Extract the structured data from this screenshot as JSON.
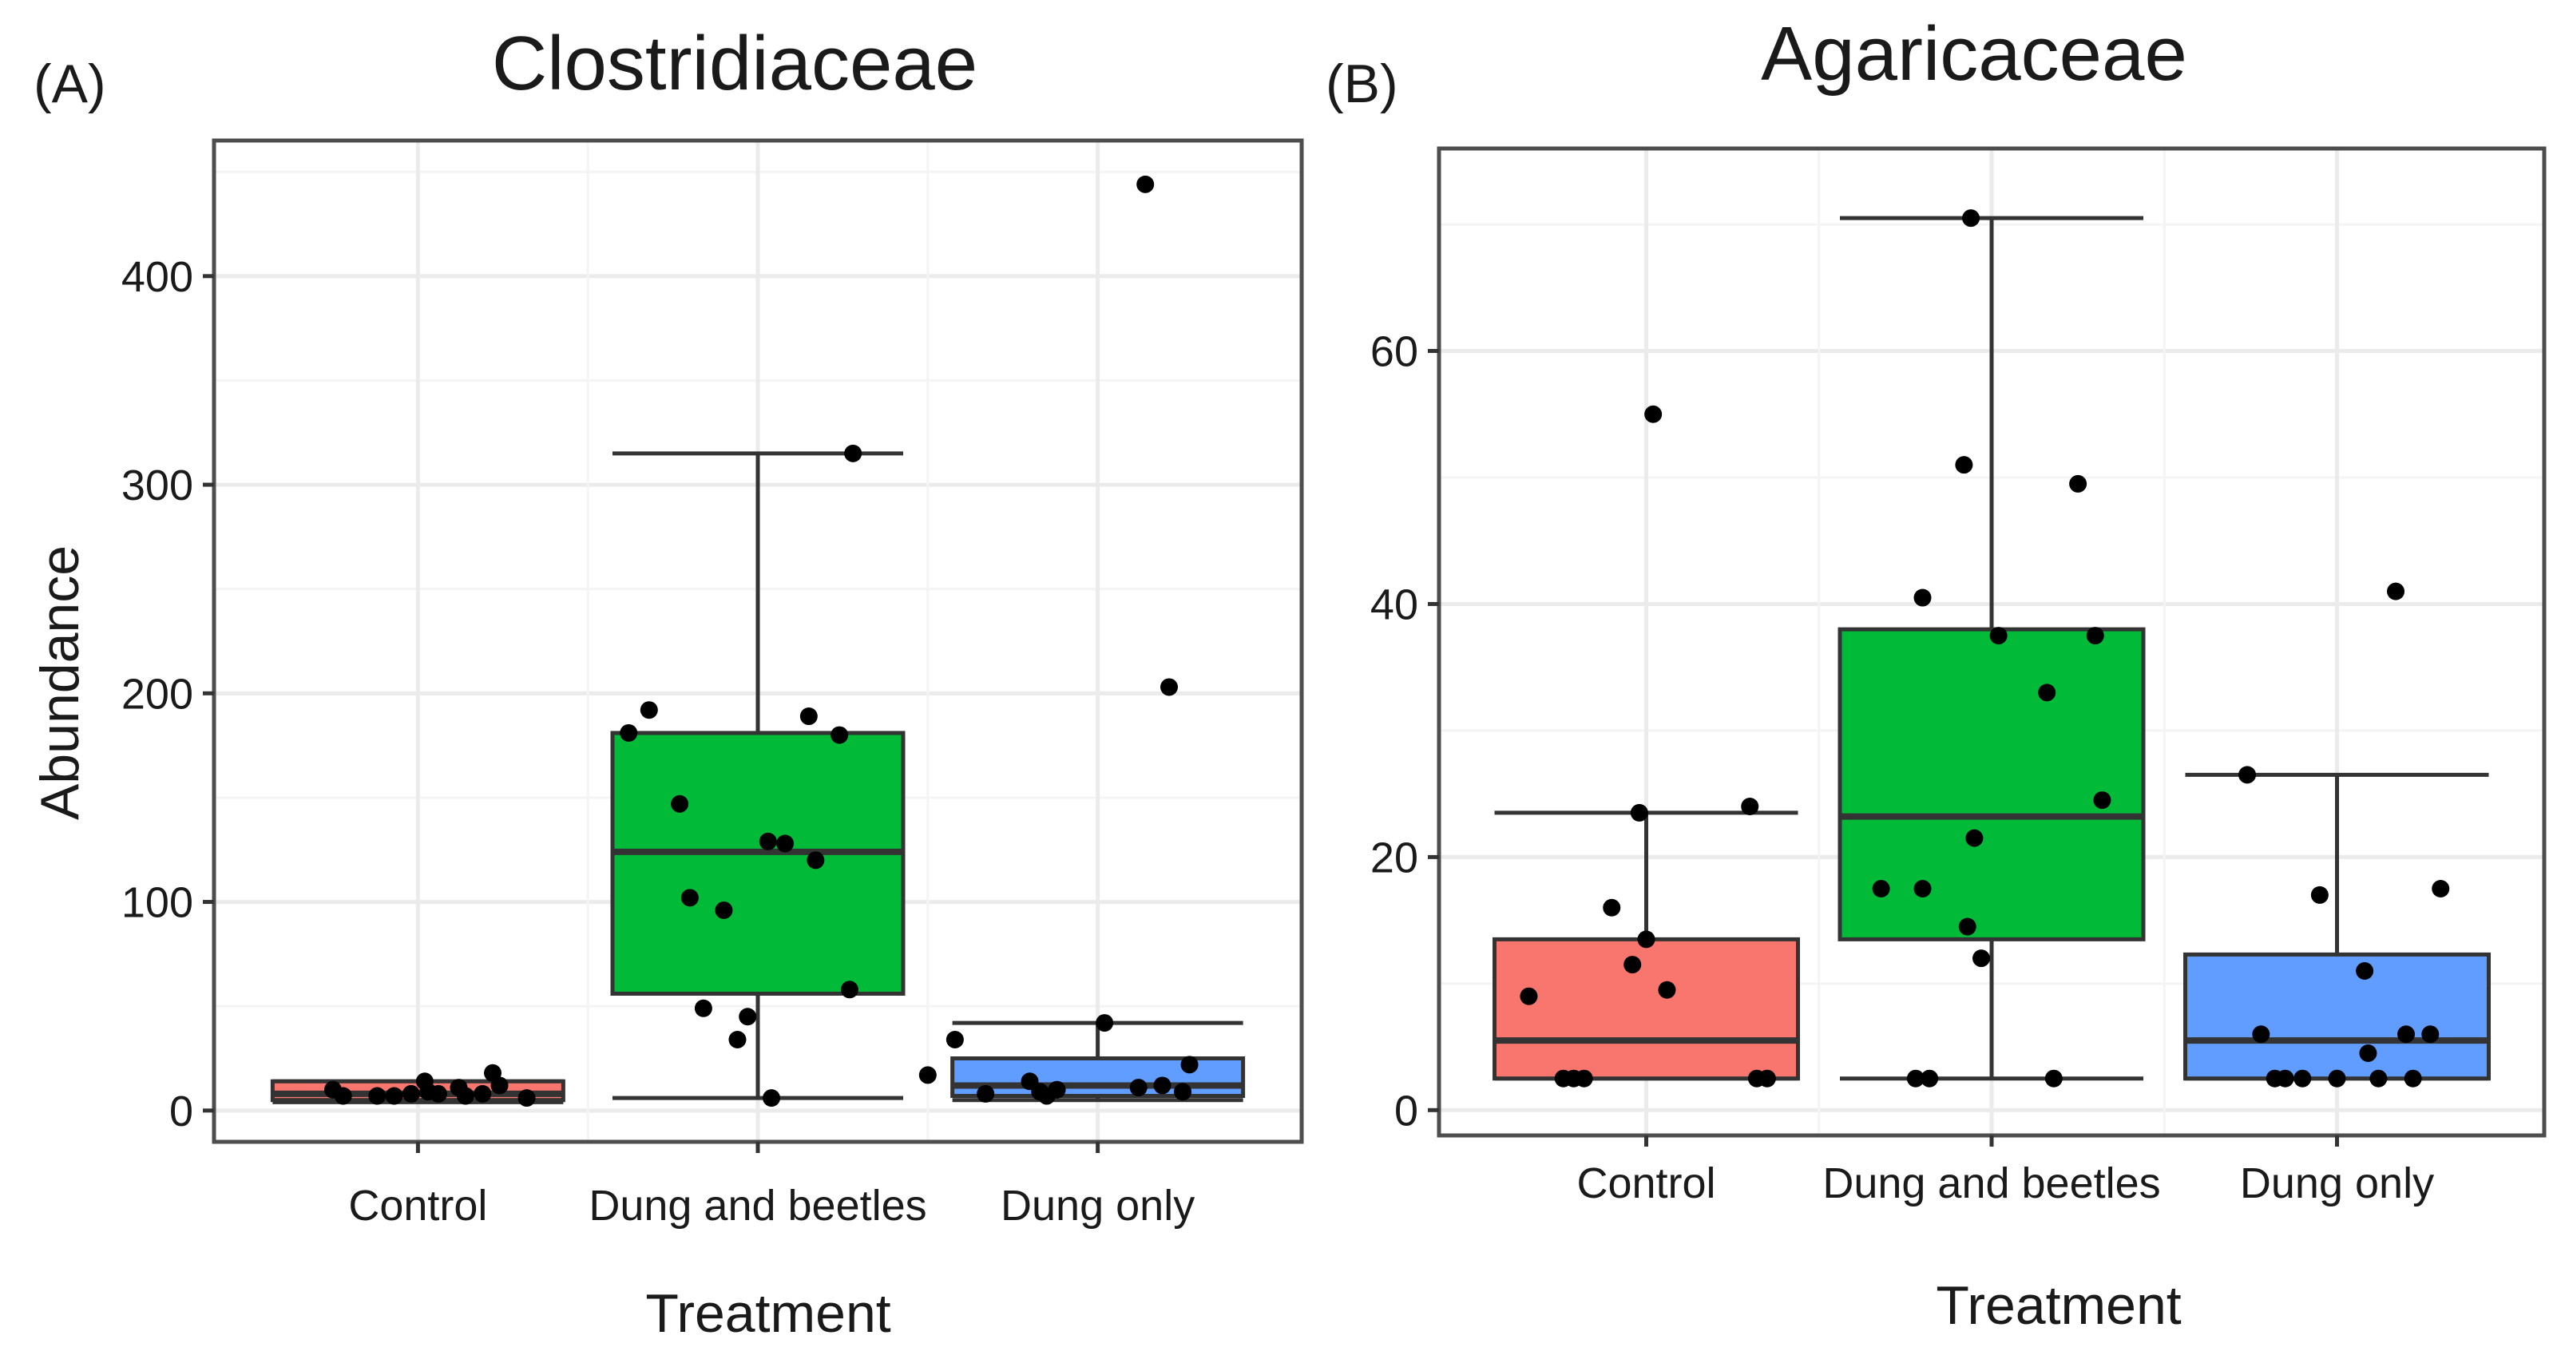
{
  "chart_data": [
    {
      "type": "box",
      "panel_label": "(A)",
      "title": "Clostridiaceae",
      "xlabel": "Treatment",
      "ylabel": "Abundance",
      "categories": [
        "Control",
        "Dung and beetles",
        "Dung only"
      ],
      "ylim": [
        -15,
        465
      ],
      "yticks": [
        0,
        100,
        200,
        300,
        400
      ],
      "ytick_labels": [
        "0",
        "100",
        "200",
        "300",
        "400"
      ],
      "grid": true,
      "boxes": [
        {
          "category": "Control",
          "q1": 5,
          "median": 8,
          "q3": 14,
          "whisker_low": 4,
          "whisker_high": 14,
          "color": "#f8766d",
          "points": [
            [
              -0.25,
              10
            ],
            [
              -0.22,
              7
            ],
            [
              -0.12,
              7
            ],
            [
              -0.07,
              7
            ],
            [
              -0.02,
              8
            ],
            [
              0.03,
              9
            ],
            [
              0.06,
              8
            ],
            [
              0.02,
              14
            ],
            [
              0.12,
              11
            ],
            [
              0.14,
              7
            ],
            [
              0.19,
              8
            ],
            [
              0.22,
              18
            ],
            [
              0.24,
              12
            ],
            [
              0.32,
              6
            ]
          ]
        },
        {
          "category": "Dung and beetles",
          "q1": 56,
          "median": 124,
          "q3": 181,
          "whisker_low": 6,
          "whisker_high": 315,
          "color": "#00ba38",
          "points": [
            [
              -0.38,
              181
            ],
            [
              -0.32,
              192
            ],
            [
              -0.23,
              147
            ],
            [
              -0.2,
              102
            ],
            [
              -0.16,
              49
            ],
            [
              -0.1,
              96
            ],
            [
              -0.06,
              34
            ],
            [
              -0.03,
              45
            ],
            [
              0.04,
              6
            ],
            [
              0.03,
              129
            ],
            [
              0.08,
              128
            ],
            [
              0.15,
              189
            ],
            [
              0.17,
              120
            ],
            [
              0.24,
              180
            ],
            [
              0.27,
              58
            ],
            [
              0.28,
              315
            ]
          ]
        },
        {
          "category": "Dung only",
          "q1": 7,
          "median": 12,
          "q3": 25,
          "whisker_low": 5,
          "whisker_high": 42,
          "color": "#619cff",
          "points": [
            [
              -0.5,
              17
            ],
            [
              -0.42,
              34
            ],
            [
              -0.33,
              8
            ],
            [
              -0.2,
              14
            ],
            [
              -0.17,
              9
            ],
            [
              -0.15,
              7
            ],
            [
              -0.12,
              10
            ],
            [
              0.02,
              42
            ],
            [
              0.12,
              11
            ],
            [
              0.14,
              444
            ],
            [
              0.19,
              12
            ],
            [
              0.21,
              203
            ],
            [
              0.25,
              9
            ],
            [
              0.27,
              22
            ]
          ]
        }
      ]
    },
    {
      "type": "box",
      "panel_label": "(B)",
      "title": "Agaricaceae",
      "xlabel": "Treatment",
      "ylabel": "",
      "categories": [
        "Control",
        "Dung and beetles",
        "Dung only"
      ],
      "ylim": [
        -2,
        76
      ],
      "yticks": [
        0,
        20,
        40,
        60
      ],
      "ytick_labels": [
        "0",
        "20",
        "40",
        "60"
      ],
      "grid": true,
      "boxes": [
        {
          "category": "Control",
          "q1": 2.5,
          "median": 5.5,
          "q3": 13.5,
          "whisker_low": 2.5,
          "whisker_high": 23.5,
          "color": "#f8766d",
          "points": [
            [
              -0.34,
              9
            ],
            [
              -0.24,
              2.5
            ],
            [
              -0.21,
              2.5
            ],
            [
              -0.18,
              2.5
            ],
            [
              -0.1,
              16
            ],
            [
              -0.04,
              11.5
            ],
            [
              -0.02,
              23.5
            ],
            [
              0.0,
              13.5
            ],
            [
              0.02,
              55
            ],
            [
              0.06,
              9.5
            ],
            [
              0.3,
              24
            ],
            [
              0.32,
              2.5
            ],
            [
              0.35,
              2.5
            ]
          ]
        },
        {
          "category": "Dung and beetles",
          "q1": 13.5,
          "median": 23.2,
          "q3": 38,
          "whisker_low": 2.5,
          "whisker_high": 70.5,
          "color": "#00ba38",
          "points": [
            [
              -0.32,
              17.5
            ],
            [
              -0.2,
              40.5
            ],
            [
              -0.22,
              2.5
            ],
            [
              -0.18,
              2.5
            ],
            [
              -0.2,
              17.5
            ],
            [
              -0.08,
              51
            ],
            [
              -0.07,
              14.5
            ],
            [
              -0.05,
              21.5
            ],
            [
              -0.03,
              12
            ],
            [
              0.02,
              37.5
            ],
            [
              0.16,
              33
            ],
            [
              0.18,
              2.5
            ],
            [
              0.25,
              49.5
            ],
            [
              0.3,
              37.5
            ],
            [
              0.32,
              24.5
            ],
            [
              -0.06,
              70.5
            ]
          ]
        },
        {
          "category": "Dung only",
          "q1": 2.5,
          "median": 5.5,
          "q3": 12.3,
          "whisker_low": 2.5,
          "whisker_high": 26.5,
          "color": "#619cff",
          "points": [
            [
              -0.26,
              26.5
            ],
            [
              -0.22,
              6
            ],
            [
              -0.18,
              2.5
            ],
            [
              -0.15,
              2.5
            ],
            [
              -0.1,
              2.5
            ],
            [
              -0.05,
              17
            ],
            [
              0.0,
              2.5
            ],
            [
              0.08,
              11
            ],
            [
              0.09,
              4.5
            ],
            [
              0.12,
              2.5
            ],
            [
              0.17,
              41
            ],
            [
              0.2,
              6
            ],
            [
              0.22,
              2.5
            ],
            [
              0.27,
              6
            ],
            [
              0.3,
              17.5
            ]
          ]
        }
      ]
    }
  ]
}
